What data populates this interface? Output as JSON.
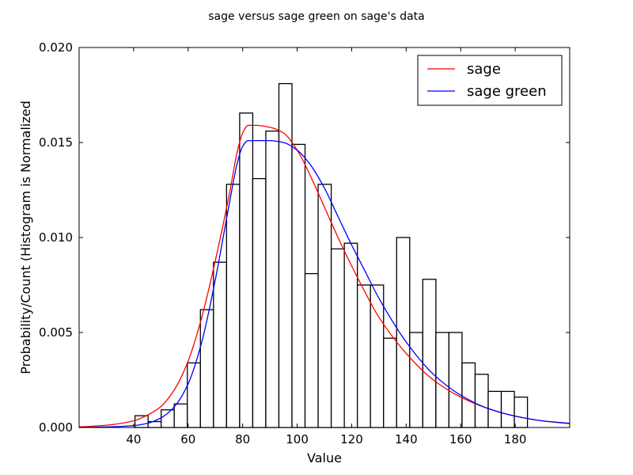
{
  "chart_data": {
    "type": "bar",
    "title": "sage versus sage green on sage's data",
    "xlabel": "Value",
    "ylabel": "Probability/Count (Histogram is Normalized",
    "xlim": [
      20,
      200
    ],
    "ylim": [
      0,
      0.02
    ],
    "x_ticks": [
      40,
      60,
      80,
      100,
      120,
      140,
      160,
      180
    ],
    "x_tick_labels": [
      "40",
      "60",
      "80",
      "100",
      "120",
      "140",
      "160",
      "180"
    ],
    "y_ticks": [
      0,
      0.005,
      0.01,
      0.015,
      0.02
    ],
    "y_tick_labels": [
      "0.000",
      "0.005",
      "0.010",
      "0.015",
      "0.020"
    ],
    "grid": false,
    "legend_position": "top-right",
    "histogram": {
      "bin_edges": [
        40.5,
        45.3,
        50.1,
        54.9,
        59.7,
        64.5,
        69.3,
        74.1,
        78.9,
        83.7,
        88.5,
        93.3,
        98.1,
        102.9,
        107.7,
        112.5,
        117.3,
        122.1,
        126.9,
        131.7,
        136.5,
        141.3,
        146.1,
        150.9,
        155.7,
        160.5,
        165.3,
        170.1,
        174.9,
        179.7
      ],
      "values": [
        0.00062,
        0.00031,
        0.00093,
        0.00124,
        0.0034,
        0.0062,
        0.0087,
        0.0128,
        0.01655,
        0.0131,
        0.0156,
        0.0181,
        0.0149,
        0.0081,
        0.0128,
        0.0094,
        0.0097,
        0.0075,
        0.0075,
        0.0047,
        0.01,
        0.005,
        0.0078,
        0.005,
        0.005,
        0.0034,
        0.0028,
        0.0019,
        0.0019,
        0.0016
      ]
    },
    "series": [
      {
        "name": "sage",
        "color": "#ff0000",
        "x": [
          20,
          30,
          40,
          45,
          50,
          55,
          60,
          65,
          70,
          75,
          78,
          80,
          82,
          85,
          90,
          95,
          100,
          105,
          110,
          115,
          120,
          125,
          130,
          140,
          150,
          160,
          170,
          180,
          190,
          200
        ],
        "y": [
          3e-05,
          0.00012,
          0.00035,
          0.00065,
          0.0011,
          0.002,
          0.0035,
          0.0058,
          0.0088,
          0.0122,
          0.0145,
          0.0155,
          0.0159,
          0.0159,
          0.0158,
          0.0155,
          0.0146,
          0.0132,
          0.0116,
          0.01,
          0.0085,
          0.0071,
          0.0058,
          0.0039,
          0.0025,
          0.0016,
          0.001,
          0.0006,
          0.00035,
          0.0002
        ]
      },
      {
        "name": "sage green",
        "color": "#0000ff",
        "x": [
          20,
          30,
          40,
          45,
          50,
          55,
          60,
          65,
          70,
          75,
          78,
          80,
          82,
          85,
          90,
          95,
          100,
          105,
          110,
          115,
          120,
          125,
          130,
          140,
          150,
          160,
          170,
          180,
          190,
          200
        ],
        "y": [
          0.0,
          3e-05,
          0.0001,
          0.00022,
          0.0005,
          0.0011,
          0.0023,
          0.0045,
          0.0078,
          0.0117,
          0.0139,
          0.0148,
          0.0151,
          0.0151,
          0.0151,
          0.015,
          0.0146,
          0.0138,
          0.0126,
          0.0111,
          0.0096,
          0.0082,
          0.0068,
          0.0045,
          0.0028,
          0.0017,
          0.001,
          0.0006,
          0.00035,
          0.00022
        ]
      }
    ]
  }
}
